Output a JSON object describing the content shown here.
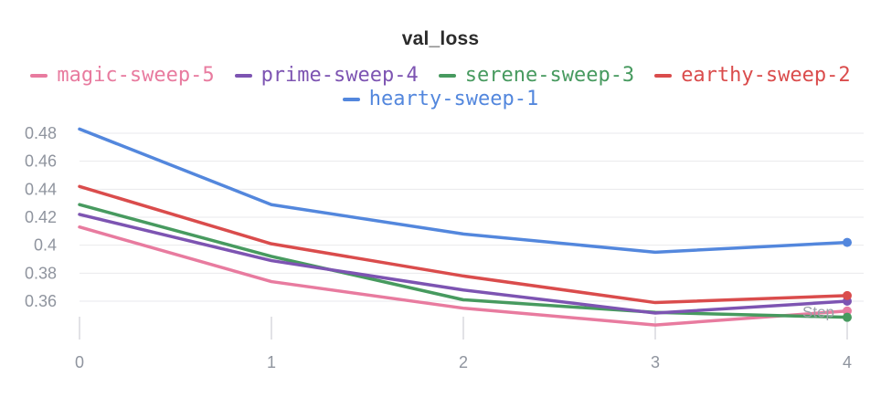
{
  "chart_data": {
    "type": "line",
    "title": "val_loss",
    "xlabel": "Step",
    "grid": true,
    "legend_position": "top",
    "x": [
      0,
      1,
      2,
      3,
      4
    ],
    "yticks": [
      0.48,
      0.46,
      0.44,
      0.42,
      0.4,
      0.38,
      0.36
    ],
    "ylim": [
      0.34,
      0.49
    ],
    "series": [
      {
        "name": "magic-sweep-5",
        "color": "#E87B9F",
        "values": [
          0.413,
          0.374,
          0.355,
          0.343,
          0.353
        ]
      },
      {
        "name": "prime-sweep-4",
        "color": "#7D54B2",
        "values": [
          0.422,
          0.389,
          0.368,
          0.3515,
          0.36
        ]
      },
      {
        "name": "serene-sweep-3",
        "color": "#479A5F",
        "values": [
          0.429,
          0.392,
          0.361,
          0.352,
          0.3485
        ]
      },
      {
        "name": "earthy-sweep-2",
        "color": "#DA4C4C",
        "values": [
          0.442,
          0.401,
          0.378,
          0.359,
          0.364
        ]
      },
      {
        "name": "hearty-sweep-1",
        "color": "#5387DD",
        "values": [
          0.483,
          0.429,
          0.408,
          0.395,
          0.402
        ]
      }
    ],
    "axis_text_color": "#8f949e",
    "step_label_color": "#9aa0a9",
    "gridline_color": "#e9e9ec",
    "tick_color": "#d9d9de"
  }
}
